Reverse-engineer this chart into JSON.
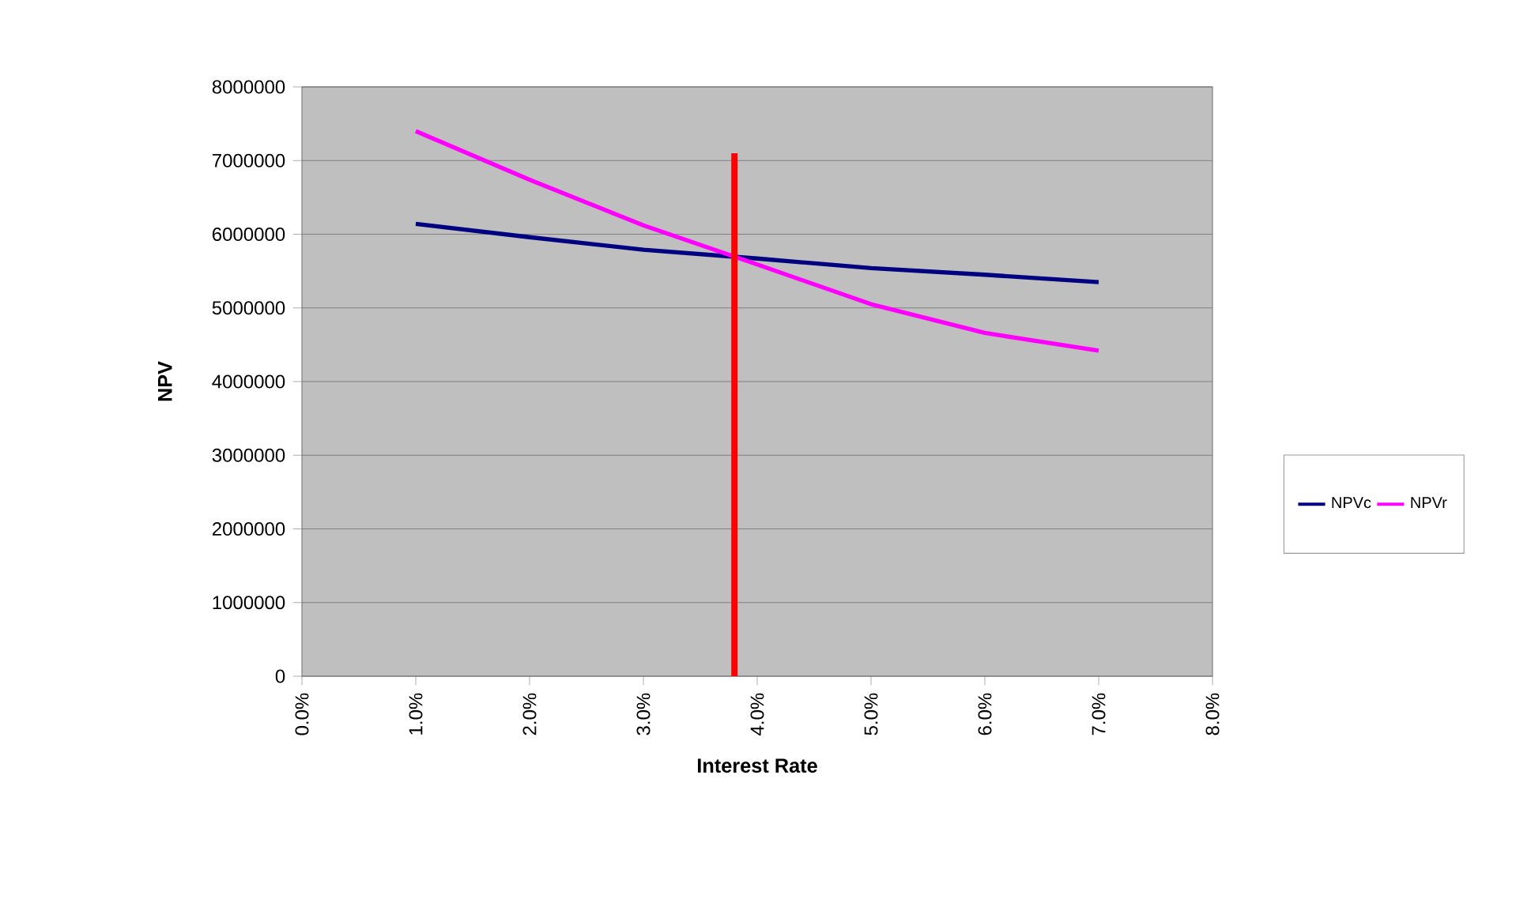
{
  "chart_data": {
    "type": "line",
    "xlabel": "Interest Rate",
    "ylabel": "NPV",
    "x": [
      1,
      2,
      3,
      4,
      5,
      6,
      7
    ],
    "series": [
      {
        "name": "NPVc",
        "color": "#000080",
        "values": [
          6140000,
          5960000,
          5790000,
          5670000,
          5540000,
          5450000,
          5350000
        ]
      },
      {
        "name": "NPVr",
        "color": "#ff00ff",
        "values": [
          7400000,
          6740000,
          6120000,
          5590000,
          5050000,
          4660000,
          4420000
        ]
      },
      {
        "color": "#ff0000",
        "x": [
          3.8,
          3.8
        ],
        "values": [
          0,
          7100000
        ]
      }
    ],
    "xlim": [
      0,
      8
    ],
    "ylim": [
      0,
      8000000
    ],
    "xticks": [
      {
        "value": 0,
        "label": "0.0%"
      },
      {
        "value": 1,
        "label": "1.0%"
      },
      {
        "value": 2,
        "label": "2.0%"
      },
      {
        "value": 3,
        "label": "3.0%"
      },
      {
        "value": 4,
        "label": "4.0%"
      },
      {
        "value": 5,
        "label": "5.0%"
      },
      {
        "value": 6,
        "label": "6.0%"
      },
      {
        "value": 7,
        "label": "7.0%"
      },
      {
        "value": 8,
        "label": "8.0%"
      }
    ],
    "yticks": [
      0,
      1000000,
      2000000,
      3000000,
      4000000,
      5000000,
      6000000,
      7000000,
      8000000
    ],
    "grid": "y",
    "legend": "right",
    "marker": "none",
    "line_style": "solid"
  }
}
